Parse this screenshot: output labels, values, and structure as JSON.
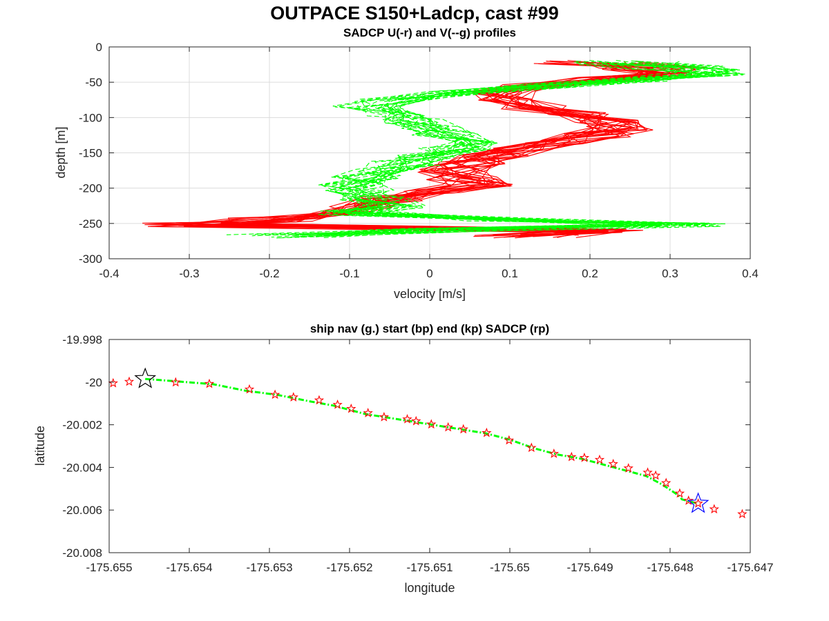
{
  "figure": {
    "title": "OUTPACE S150+Ladcp, cast #99"
  },
  "chart_data": [
    {
      "type": "line",
      "title": "SADCP U(-r) and V(--g) profiles",
      "xlabel": "velocity [m/s]",
      "ylabel": "depth [m]",
      "xlim": [
        -0.4,
        0.4
      ],
      "ylim": [
        -300,
        0
      ],
      "xticks": [
        "-0.4",
        "-0.3",
        "-0.2",
        "-0.1",
        "0",
        "0.1",
        "0.2",
        "0.3",
        "0.4"
      ],
      "yticks": [
        "0",
        "-50",
        "-100",
        "-150",
        "-200",
        "-250",
        "-300"
      ],
      "grid": true,
      "series": [
        {
          "name": "U",
          "color": "#ff0000",
          "style": "solid",
          "depth": [
            -22,
            -30,
            -38,
            -46,
            -55,
            -65,
            -75,
            -85,
            -95,
            -105,
            -115,
            -125,
            -135,
            -145,
            -155,
            -165,
            -175,
            -185,
            -195,
            -205,
            -215,
            -225,
            -235,
            -245,
            -252,
            -260,
            -268
          ],
          "velocity": [
            0.2,
            0.28,
            0.3,
            0.22,
            0.12,
            0.09,
            0.1,
            0.13,
            0.18,
            0.22,
            0.24,
            0.21,
            0.15,
            0.11,
            0.08,
            0.05,
            0.03,
            0.04,
            0.06,
            0.0,
            -0.05,
            -0.08,
            -0.1,
            -0.2,
            -0.3,
            0.2,
            0.12
          ]
        },
        {
          "name": "V",
          "color": "#00ff00",
          "style": "dashed",
          "depth": [
            -22,
            -30,
            -38,
            -46,
            -55,
            -65,
            -75,
            -85,
            -95,
            -105,
            -115,
            -125,
            -135,
            -145,
            -155,
            -165,
            -175,
            -185,
            -195,
            -205,
            -215,
            -225,
            -235,
            -245,
            -252,
            -260,
            -268
          ],
          "velocity": [
            0.25,
            0.32,
            0.35,
            0.27,
            0.15,
            0.02,
            -0.05,
            -0.08,
            -0.05,
            -0.02,
            0.0,
            0.02,
            0.05,
            0.03,
            0.0,
            -0.03,
            -0.06,
            -0.08,
            -0.1,
            -0.09,
            -0.07,
            -0.05,
            -0.1,
            0.1,
            0.3,
            0.0,
            -0.2
          ]
        }
      ]
    },
    {
      "type": "scatter",
      "title": "ship nav (g.) start (bp) end (kp) SADCP (rp)",
      "xlabel": "longitude",
      "ylabel": "latitude",
      "xlim": [
        -175.655,
        -175.647
      ],
      "ylim": [
        -20.008,
        -19.998
      ],
      "xticks": [
        "-175.655",
        "-175.654",
        "-175.653",
        "-175.652",
        "-175.651",
        "-175.65",
        "-175.649",
        "-175.648",
        "-175.647"
      ],
      "yticks": [
        "-19.998",
        "-20",
        "-20.002",
        "-20.004",
        "-20.006",
        "-20.008"
      ],
      "grid": false,
      "ship_nav": {
        "color": "#00ff00",
        "lon": [
          -175.65455,
          -175.6542,
          -175.6537,
          -175.6533,
          -175.6529,
          -175.6525,
          -175.6522,
          -175.652,
          -175.6518,
          -175.6513,
          -175.6508,
          -175.6503,
          -175.65,
          -175.6497,
          -175.6494,
          -175.6491,
          -175.6489,
          -175.6486,
          -175.6483,
          -175.6481,
          -175.6479,
          -175.64785,
          -175.6477,
          -175.64765
        ],
        "lat": [
          -19.99985,
          -19.99995,
          -20.0001,
          -20.0004,
          -20.0006,
          -20.0009,
          -20.0011,
          -20.0013,
          -20.0015,
          -20.0018,
          -20.0021,
          -20.0024,
          -20.0027,
          -20.0031,
          -20.0034,
          -20.0036,
          -20.0038,
          -20.0041,
          -20.0044,
          -20.0048,
          -20.0053,
          -20.0055,
          -20.00565,
          -20.0057
        ]
      },
      "sadcp": {
        "color": "#ff0000",
        "lon": [
          -175.65495,
          -175.65475,
          -175.65417,
          -175.65375,
          -175.65325,
          -175.65293,
          -175.6527,
          -175.65238,
          -175.65215,
          -175.65198,
          -175.65177,
          -175.65157,
          -175.65128,
          -175.65117,
          -175.65098,
          -175.65077,
          -175.65058,
          -175.65029,
          -175.65001,
          -175.64973,
          -175.64945,
          -175.64923,
          -175.64907,
          -175.64888,
          -175.64871,
          -175.64852,
          -175.64828,
          -175.64818,
          -175.64805,
          -175.64788,
          -175.64777,
          -175.64765,
          -175.64745,
          -175.6471
        ],
        "lat": [
          -20.00005,
          -19.99998,
          -20.00001,
          -20.00008,
          -20.00034,
          -20.00059,
          -20.00071,
          -20.00085,
          -20.00106,
          -20.00125,
          -20.00145,
          -20.00164,
          -20.00174,
          -20.00183,
          -20.00198,
          -20.00212,
          -20.00221,
          -20.00238,
          -20.00273,
          -20.00308,
          -20.00336,
          -20.00351,
          -20.00355,
          -20.00364,
          -20.00384,
          -20.00404,
          -20.00424,
          -20.00438,
          -20.00473,
          -20.00522,
          -20.00556,
          -20.00569,
          -20.00596,
          -20.00619
        ]
      },
      "start": {
        "color": "#0000ff",
        "lon": -175.64765,
        "lat": -20.0057
      },
      "end": {
        "color": "#000000",
        "lon": -175.65455,
        "lat": -19.99985
      }
    }
  ]
}
